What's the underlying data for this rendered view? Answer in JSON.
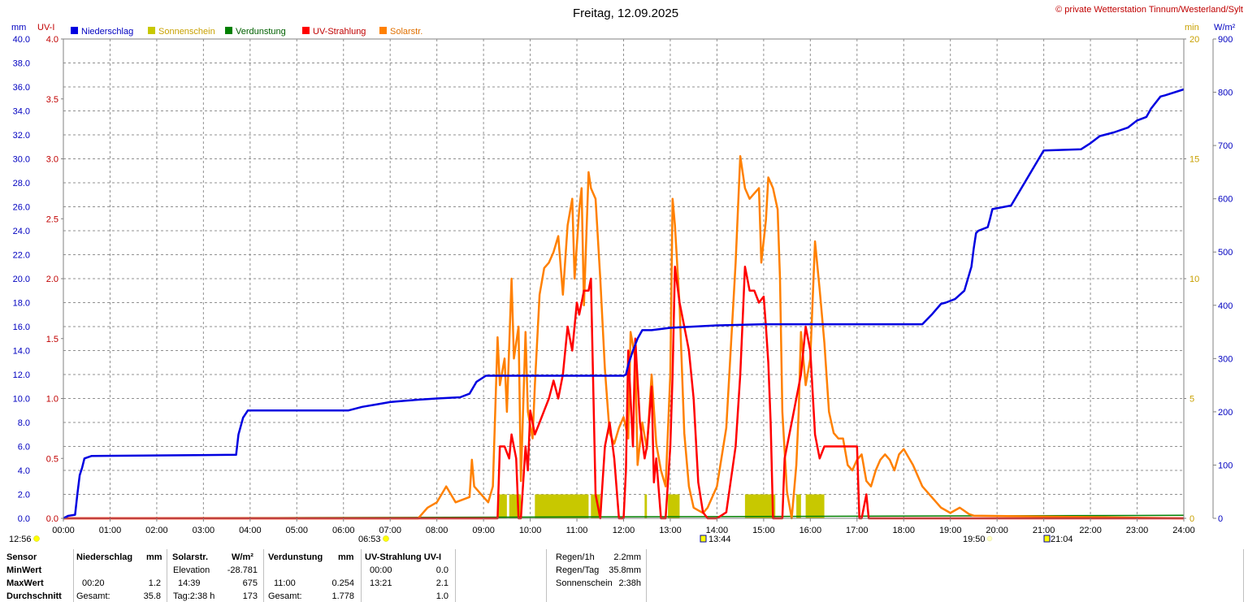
{
  "header": {
    "title": "Freitag, 12.09.2025",
    "copyright": "© private Wetterstation Tinnum/Westerland/Sylt"
  },
  "axes": {
    "left_mm_unit": "mm",
    "left_uv_unit": "UV-I",
    "right_min_unit": "min",
    "right_wm2_unit": "W/m²",
    "mm_ticks": [
      "0.0",
      "2.0",
      "4.0",
      "6.0",
      "8.0",
      "10.0",
      "12.0",
      "14.0",
      "16.0",
      "18.0",
      "20.0",
      "22.0",
      "24.0",
      "26.0",
      "28.0",
      "30.0",
      "32.0",
      "34.0",
      "36.0",
      "38.0",
      "40.0"
    ],
    "uv_ticks": [
      "0.0",
      "0.5",
      "1.0",
      "1.5",
      "2.0",
      "2.5",
      "3.0",
      "3.5",
      "4.0"
    ],
    "min_ticks": [
      "0",
      "5",
      "10",
      "15",
      "20"
    ],
    "wm2_ticks": [
      "0",
      "100",
      "200",
      "300",
      "400",
      "500",
      "600",
      "700",
      "800",
      "900"
    ],
    "x_ticks": [
      "00:00",
      "01:00",
      "02:00",
      "03:00",
      "04:00",
      "05:00",
      "06:00",
      "07:00",
      "08:00",
      "09:00",
      "10:00",
      "11:00",
      "12:00",
      "13:00",
      "14:00",
      "15:00",
      "16:00",
      "17:00",
      "18:00",
      "19:00",
      "20:00",
      "21:00",
      "22:00",
      "23:00",
      "24:00"
    ]
  },
  "legend": {
    "niederschlag": "Niederschlag",
    "sonnenschein": "Sonnenschein",
    "verdunstung": "Verdunstung",
    "uv": "UV-Strahlung",
    "solar": "Solarstr."
  },
  "colors": {
    "niederschlag": "#0000e0",
    "sonnenschein": "#c8c800",
    "verdunstung": "#008000",
    "uv": "#ff0000",
    "solar": "#ff8000",
    "left_mm": "#0000c0",
    "left_uv": "#c00000",
    "right_min": "#c8a000",
    "right_wm2": "#0000c0"
  },
  "markers": {
    "moon_set": "12:56",
    "sunrise": "06:53",
    "transit": "13:44",
    "sunset": "19:50",
    "moon_rise": "21:04"
  },
  "chart_data": {
    "type": "line",
    "title": "Freitag, 12.09.2025",
    "x_unit": "hour",
    "xlim": [
      0,
      24
    ],
    "ylim_mm": [
      0,
      40
    ],
    "ylim_uv": [
      0,
      4
    ],
    "ylim_min": [
      0,
      20
    ],
    "ylim_wm2": [
      0,
      900
    ],
    "grid": true,
    "legend_position": "top-left",
    "series": [
      {
        "name": "Niederschlag",
        "axis": "mm",
        "x": [
          0,
          0.1,
          0.25,
          0.3,
          0.35,
          0.4,
          0.45,
          0.6,
          3.7,
          3.75,
          3.85,
          3.95,
          6.1,
          6.4,
          6.7,
          7.0,
          7.3,
          7.6,
          8.0,
          8.5,
          8.7,
          8.85,
          9.05,
          11.0,
          12.0,
          12.05,
          12.1,
          12.2,
          12.3,
          12.4,
          12.6,
          13.0,
          13.5,
          14.0,
          15.0,
          16.0,
          17.0,
          18.0,
          18.4,
          18.5,
          18.6,
          18.8,
          18.9,
          19.1,
          19.3,
          19.45,
          19.5,
          19.55,
          19.6,
          19.8,
          19.85,
          19.9,
          20.3,
          21.0,
          21.8,
          22.0,
          22.2,
          22.4,
          22.5,
          22.8,
          23.0,
          23.2,
          23.3,
          23.5,
          23.6,
          24.0
        ],
        "values": [
          0,
          0.2,
          0.3,
          2.0,
          3.6,
          4.2,
          5.0,
          5.2,
          5.3,
          7.0,
          8.4,
          9.0,
          9.0,
          9.3,
          9.5,
          9.7,
          9.8,
          9.9,
          10.0,
          10.1,
          10.4,
          11.4,
          11.9,
          11.9,
          11.9,
          12.0,
          12.8,
          14.0,
          15.0,
          15.7,
          15.7,
          15.9,
          16.0,
          16.1,
          16.2,
          16.2,
          16.2,
          16.2,
          16.2,
          16.6,
          17.0,
          17.9,
          18.0,
          18.3,
          19.0,
          21.0,
          22.5,
          23.8,
          24.0,
          24.3,
          25.0,
          25.8,
          26.1,
          30.7,
          30.8,
          31.3,
          31.9,
          32.1,
          32.2,
          32.6,
          33.2,
          33.5,
          34.2,
          35.2,
          35.3,
          35.8
        ]
      },
      {
        "name": "UV-Strahlung",
        "axis": "uv",
        "x": [
          0,
          9.3,
          9.35,
          9.45,
          9.55,
          9.6,
          9.7,
          9.75,
          9.8,
          9.9,
          9.95,
          10.0,
          10.1,
          10.2,
          10.3,
          10.4,
          10.5,
          10.6,
          10.7,
          10.8,
          10.9,
          11.0,
          11.05,
          11.15,
          11.25,
          11.3,
          11.4,
          11.5,
          11.55,
          11.6,
          11.7,
          11.8,
          11.9,
          12.0,
          12.05,
          12.1,
          12.2,
          12.25,
          12.35,
          12.45,
          12.5,
          12.6,
          12.65,
          12.7,
          12.8,
          12.9,
          13.0,
          13.05,
          13.1,
          13.2,
          13.3,
          13.35,
          13.4,
          13.5,
          13.6,
          13.7,
          13.8,
          14.0,
          14.2,
          14.4,
          14.5,
          14.6,
          14.65,
          14.7,
          14.8,
          14.9,
          15.0,
          15.05,
          15.1,
          15.15,
          15.2,
          15.3,
          15.4,
          15.45,
          15.5,
          15.6,
          15.7,
          15.8,
          15.9,
          16.0,
          16.1,
          16.2,
          16.3,
          16.4,
          16.5,
          16.7,
          16.9,
          17.0,
          17.05,
          17.1,
          17.2,
          17.25,
          24
        ],
        "values": [
          0,
          0,
          0.6,
          0.6,
          0.5,
          0.7,
          0.5,
          0,
          0,
          0.6,
          0.4,
          0.9,
          0.7,
          0.8,
          0.9,
          1.0,
          1.15,
          1.0,
          1.2,
          1.6,
          1.4,
          1.8,
          1.7,
          1.9,
          1.9,
          2.0,
          0.2,
          0,
          0.3,
          0.6,
          0.8,
          0.5,
          0,
          0,
          0.4,
          1.4,
          0.6,
          1.5,
          0.8,
          0.5,
          0.6,
          1.1,
          0.3,
          0.5,
          0,
          0,
          0.6,
          1.2,
          2.1,
          1.8,
          1.6,
          1.5,
          1.4,
          1.0,
          0.3,
          0.05,
          0,
          0,
          0.05,
          0.6,
          1.2,
          2.1,
          2.0,
          1.9,
          1.9,
          1.8,
          1.85,
          1.6,
          1.3,
          0.8,
          0,
          0,
          0,
          0.5,
          0.6,
          0.8,
          1.0,
          1.2,
          1.6,
          1.4,
          0.7,
          0.5,
          0.6,
          0.6,
          0.6,
          0.6,
          0.6,
          0.6,
          0,
          0,
          0.2,
          0,
          0
        ]
      },
      {
        "name": "Solarstr.",
        "axis": "wm2",
        "x": [
          0,
          7.6,
          7.8,
          8.0,
          8.2,
          8.4,
          8.7,
          8.75,
          8.8,
          9.0,
          9.1,
          9.2,
          9.3,
          9.35,
          9.45,
          9.5,
          9.6,
          9.65,
          9.75,
          9.8,
          9.9,
          9.95,
          10.05,
          10.1,
          10.2,
          10.3,
          10.4,
          10.5,
          10.6,
          10.7,
          10.8,
          10.9,
          10.95,
          11.05,
          11.1,
          11.15,
          11.25,
          11.3,
          11.4,
          11.5,
          11.6,
          11.7,
          11.8,
          11.9,
          12.0,
          12.1,
          12.15,
          12.25,
          12.3,
          12.4,
          12.5,
          12.6,
          12.7,
          12.8,
          12.9,
          13.0,
          13.05,
          13.1,
          13.2,
          13.3,
          13.4,
          13.5,
          13.6,
          13.7,
          13.8,
          14.0,
          14.2,
          14.4,
          14.5,
          14.6,
          14.7,
          14.8,
          14.9,
          14.95,
          15.05,
          15.1,
          15.2,
          15.3,
          15.35,
          15.4,
          15.5,
          15.6,
          15.7,
          15.75,
          15.8,
          15.9,
          16.0,
          16.1,
          16.2,
          16.3,
          16.4,
          16.5,
          16.6,
          16.7,
          16.8,
          16.9,
          17.0,
          17.1,
          17.2,
          17.3,
          17.4,
          17.5,
          17.6,
          17.7,
          17.8,
          17.9,
          18.0,
          18.2,
          18.4,
          18.6,
          18.8,
          19.0,
          19.2,
          19.4,
          19.5,
          24
        ],
        "values": [
          0,
          0,
          20,
          30,
          60,
          30,
          40,
          110,
          60,
          40,
          30,
          60,
          340,
          250,
          300,
          200,
          450,
          300,
          360,
          70,
          350,
          200,
          150,
          250,
          420,
          470,
          480,
          500,
          530,
          420,
          550,
          600,
          450,
          580,
          620,
          400,
          650,
          620,
          600,
          450,
          280,
          160,
          140,
          170,
          190,
          150,
          350,
          300,
          100,
          180,
          130,
          270,
          140,
          90,
          60,
          270,
          600,
          550,
          400,
          160,
          60,
          20,
          15,
          10,
          20,
          60,
          170,
          480,
          680,
          620,
          600,
          610,
          620,
          480,
          560,
          640,
          620,
          580,
          450,
          200,
          50,
          0,
          100,
          200,
          350,
          250,
          300,
          520,
          430,
          330,
          200,
          160,
          150,
          150,
          100,
          90,
          110,
          120,
          70,
          60,
          90,
          110,
          120,
          110,
          90,
          120,
          130,
          100,
          60,
          40,
          20,
          10,
          20,
          8,
          5,
          0
        ]
      },
      {
        "name": "Sonnenschein",
        "axis": "min",
        "x": [
          9.3,
          9.5,
          9.55,
          9.8,
          10.1,
          11.25,
          11.3,
          11.5,
          12.45,
          12.5,
          12.95,
          13.2,
          14.6,
          15.25,
          15.7,
          15.8,
          15.9,
          16.3
        ],
        "values": [
          1,
          1,
          1,
          1,
          1,
          1,
          1,
          1,
          1,
          1,
          1,
          1,
          1,
          1,
          1,
          1,
          1,
          1
        ]
      },
      {
        "name": "Verdunstung",
        "axis": "mm",
        "x": [
          0,
          24
        ],
        "values": [
          0,
          0.25
        ]
      }
    ]
  },
  "stats": {
    "h_sensor": "Sensor",
    "h_nieder": "Niederschlag",
    "h_nieder_unit": "mm",
    "h_solar": "Solarstr.",
    "h_solar_unit": "W/m²",
    "h_verd": "Verdunstung",
    "h_verd_unit": "mm",
    "h_uv": "UV-Strahlung UV-I",
    "r_min": "MinWert",
    "r_max": "MaxWert",
    "r_avg": "Durchschnitt",
    "elev_label": "Elevation",
    "elev_value": "-28.781",
    "nieder_max_time": "00:20",
    "nieder_max_value": "1.2",
    "nieder_total_label": "Gesamt:",
    "nieder_total_value": "35.8",
    "solar_max_time": "14:39",
    "solar_max_value": "675",
    "solar_tag_label": "Tag:2:38 h",
    "solar_avg_value": "173",
    "verd_max_time": "11:00",
    "verd_max_value": "0.254",
    "verd_total_label": "Gesamt:",
    "verd_total_value": "1.778",
    "uv_min_time": "00:00",
    "uv_min_value": "0.0",
    "uv_max_time": "13:21",
    "uv_max_value": "2.1",
    "uv_avg_value": "1.0",
    "regen_h_label": "Regen/1h",
    "regen_h_value": "2.2mm",
    "regen_tag_label": "Regen/Tag",
    "regen_tag_value": "35.8mm",
    "sonne_label": "Sonnenschein",
    "sonne_value": "2:38h"
  }
}
